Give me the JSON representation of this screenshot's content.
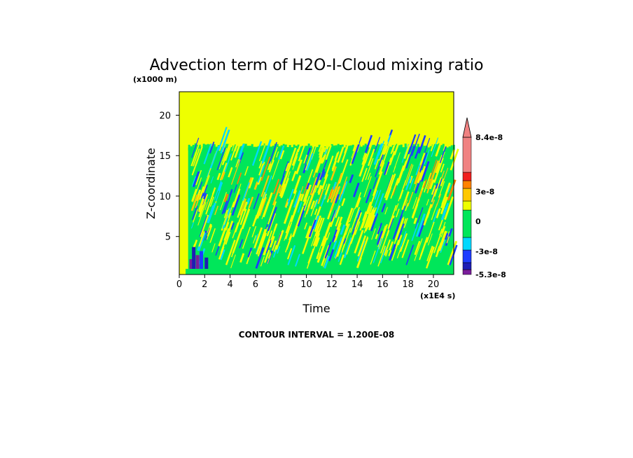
{
  "chart_data": {
    "type": "heatmap",
    "title": "Advection term of H2O-I-Cloud mixing ratio",
    "xlabel": "Time",
    "ylabel": "Z-coordinate",
    "x_unit_label": "(x1E4 s)",
    "y_unit_label": "(x1000 m)",
    "xlim": [
      0,
      21.6
    ],
    "ylim": [
      0.3,
      22.9
    ],
    "x_ticks": [
      "0",
      "2",
      "4",
      "6",
      "8",
      "10",
      "12",
      "14",
      "16",
      "18",
      "20"
    ],
    "y_ticks": [
      "5",
      "10",
      "15",
      "20"
    ],
    "grid": false,
    "contour_interval_label": "CONTOUR INTERVAL = 1.200E-08",
    "background_color": "#eeff00",
    "cloud_top_z": 16,
    "convection_onset_time": 0.7,
    "colorbar": {
      "levels": [
        {
          "color": "#7a1e9c"
        },
        {
          "color": "#1e1eb4"
        },
        {
          "color": "#1e3cff"
        },
        {
          "color": "#00d8ff"
        },
        {
          "color": "#00e65a"
        },
        {
          "color": "#eeff00"
        },
        {
          "color": "#ffc800"
        },
        {
          "color": "#ff8200"
        },
        {
          "color": "#f01e1e"
        },
        {
          "color": "#f08282"
        }
      ],
      "tick_labels": [
        {
          "label": "8.4e-8",
          "value": 8.4e-08
        },
        {
          "label": "3e-8",
          "value": 3e-08
        },
        {
          "label": "0",
          "value": 0
        },
        {
          "label": "-3e-8",
          "value": -3e-08
        },
        {
          "label": "-5.3e-8",
          "value": -5.3e-08
        }
      ],
      "range": [
        -5.3e-08,
        8.4e-08
      ]
    }
  }
}
